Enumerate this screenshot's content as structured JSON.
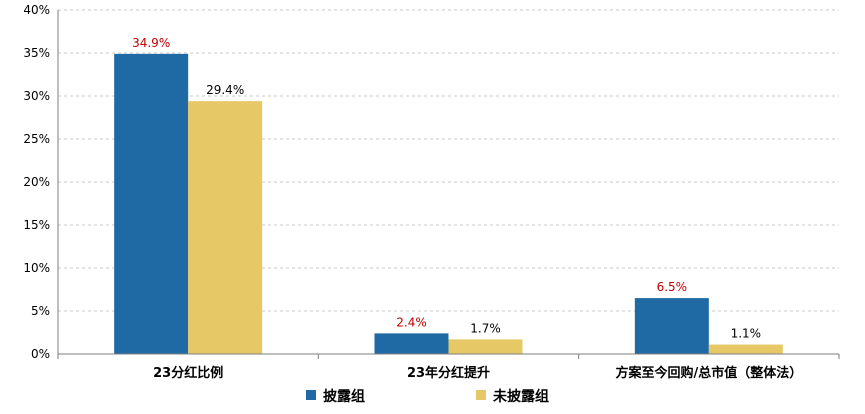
{
  "chart_data": {
    "type": "bar",
    "categories": [
      "23分红比例",
      "23年分红提升",
      "方案至今回购/总市值（整体法）"
    ],
    "series": [
      {
        "name": "披露组",
        "values": [
          34.9,
          2.4,
          6.5
        ],
        "labels": [
          "34.9%",
          "2.4%",
          "6.5%"
        ],
        "color": "#1f6aa5",
        "label_color": "#c00000"
      },
      {
        "name": "未披露组",
        "values": [
          29.4,
          1.7,
          1.1
        ],
        "labels": [
          "29.4%",
          "1.7%",
          "1.1%"
        ],
        "color": "#e6c866",
        "label_color": "#000000"
      }
    ],
    "ylim": [
      0,
      40
    ],
    "yticks": [
      "0%",
      "5%",
      "10%",
      "15%",
      "20%",
      "25%",
      "30%",
      "35%",
      "40%"
    ],
    "grid": true,
    "legend_position": "bottom"
  }
}
